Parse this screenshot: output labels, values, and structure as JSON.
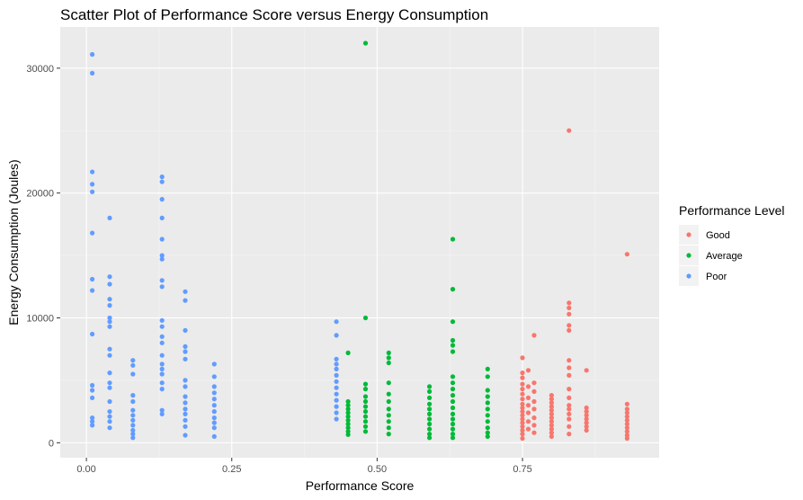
{
  "chart_data": {
    "type": "scatter",
    "title": "Scatter Plot of Performance Score versus Energy Consumption",
    "xlabel": "Performance Score",
    "ylabel": "Energy Consumption (Joules)",
    "xlim": [
      -0.045,
      0.985
    ],
    "ylim": [
      -1200,
      33300
    ],
    "x_ticks": [
      0.0,
      0.25,
      0.5,
      0.75
    ],
    "x_tick_labels": [
      "0.00",
      "0.25",
      "0.50",
      "0.75"
    ],
    "y_ticks": [
      0,
      10000,
      20000,
      30000
    ],
    "y_tick_labels": [
      "0",
      "10000",
      "20000",
      "30000"
    ],
    "grid": true,
    "panel_background": "#ebebeb",
    "legend": {
      "title": "Performance Level",
      "position": "right"
    },
    "series": [
      {
        "name": "Good",
        "color": "#f8766d",
        "points": [
          [
            0.75,
            6800
          ],
          [
            0.75,
            5600
          ],
          [
            0.75,
            5200
          ],
          [
            0.75,
            4700
          ],
          [
            0.75,
            4300
          ],
          [
            0.75,
            3900
          ],
          [
            0.75,
            3500
          ],
          [
            0.75,
            3100
          ],
          [
            0.75,
            2800
          ],
          [
            0.75,
            2500
          ],
          [
            0.75,
            2200
          ],
          [
            0.75,
            1900
          ],
          [
            0.75,
            1600
          ],
          [
            0.75,
            1300
          ],
          [
            0.75,
            1000
          ],
          [
            0.75,
            700
          ],
          [
            0.75,
            350
          ],
          [
            0.76,
            5800
          ],
          [
            0.76,
            4500
          ],
          [
            0.76,
            3600
          ],
          [
            0.76,
            3000
          ],
          [
            0.76,
            2400
          ],
          [
            0.76,
            1700
          ],
          [
            0.76,
            1100
          ],
          [
            0.77,
            8600
          ],
          [
            0.77,
            4800
          ],
          [
            0.77,
            4100
          ],
          [
            0.77,
            3300
          ],
          [
            0.77,
            2700
          ],
          [
            0.77,
            2000
          ],
          [
            0.77,
            1400
          ],
          [
            0.77,
            800
          ],
          [
            0.8,
            3800
          ],
          [
            0.8,
            3500
          ],
          [
            0.8,
            3200
          ],
          [
            0.8,
            2900
          ],
          [
            0.8,
            2600
          ],
          [
            0.8,
            2300
          ],
          [
            0.8,
            2000
          ],
          [
            0.8,
            1700
          ],
          [
            0.8,
            1400
          ],
          [
            0.8,
            1100
          ],
          [
            0.8,
            800
          ],
          [
            0.8,
            500
          ],
          [
            0.83,
            25000
          ],
          [
            0.83,
            11200
          ],
          [
            0.83,
            10800
          ],
          [
            0.83,
            10300
          ],
          [
            0.83,
            9400
          ],
          [
            0.83,
            9000
          ],
          [
            0.83,
            6600
          ],
          [
            0.83,
            6000
          ],
          [
            0.83,
            5400
          ],
          [
            0.83,
            4300
          ],
          [
            0.83,
            3600
          ],
          [
            0.83,
            3000
          ],
          [
            0.83,
            2700
          ],
          [
            0.83,
            2300
          ],
          [
            0.83,
            1900
          ],
          [
            0.83,
            1300
          ],
          [
            0.83,
            700
          ],
          [
            0.86,
            5800
          ],
          [
            0.86,
            2800
          ],
          [
            0.86,
            2500
          ],
          [
            0.86,
            2200
          ],
          [
            0.86,
            1900
          ],
          [
            0.86,
            1600
          ],
          [
            0.86,
            1300
          ],
          [
            0.86,
            1000
          ],
          [
            0.93,
            15100
          ],
          [
            0.93,
            3100
          ],
          [
            0.93,
            2700
          ],
          [
            0.93,
            2400
          ],
          [
            0.93,
            2100
          ],
          [
            0.93,
            1800
          ],
          [
            0.93,
            1500
          ],
          [
            0.93,
            1200
          ],
          [
            0.93,
            900
          ],
          [
            0.93,
            600
          ],
          [
            0.93,
            350
          ]
        ]
      },
      {
        "name": "Average",
        "color": "#00ba38",
        "points": [
          [
            0.45,
            7200
          ],
          [
            0.45,
            3300
          ],
          [
            0.45,
            3000
          ],
          [
            0.45,
            2700
          ],
          [
            0.45,
            2400
          ],
          [
            0.45,
            2100
          ],
          [
            0.45,
            1800
          ],
          [
            0.45,
            1500
          ],
          [
            0.45,
            1200
          ],
          [
            0.45,
            900
          ],
          [
            0.45,
            650
          ],
          [
            0.48,
            32000
          ],
          [
            0.48,
            10000
          ],
          [
            0.48,
            4700
          ],
          [
            0.48,
            4300
          ],
          [
            0.48,
            3700
          ],
          [
            0.48,
            3300
          ],
          [
            0.48,
            2900
          ],
          [
            0.48,
            2500
          ],
          [
            0.48,
            2100
          ],
          [
            0.48,
            1700
          ],
          [
            0.48,
            1300
          ],
          [
            0.48,
            900
          ],
          [
            0.52,
            7200
          ],
          [
            0.52,
            6800
          ],
          [
            0.52,
            6400
          ],
          [
            0.52,
            4800
          ],
          [
            0.52,
            3900
          ],
          [
            0.52,
            3300
          ],
          [
            0.52,
            2700
          ],
          [
            0.52,
            2200
          ],
          [
            0.52,
            1700
          ],
          [
            0.52,
            1200
          ],
          [
            0.52,
            700
          ],
          [
            0.59,
            4500
          ],
          [
            0.59,
            4100
          ],
          [
            0.59,
            3600
          ],
          [
            0.59,
            3100
          ],
          [
            0.59,
            2700
          ],
          [
            0.59,
            2300
          ],
          [
            0.59,
            1900
          ],
          [
            0.59,
            1500
          ],
          [
            0.59,
            1100
          ],
          [
            0.59,
            700
          ],
          [
            0.59,
            400
          ],
          [
            0.63,
            16300
          ],
          [
            0.63,
            12300
          ],
          [
            0.63,
            9700
          ],
          [
            0.63,
            8200
          ],
          [
            0.63,
            7800
          ],
          [
            0.63,
            7300
          ],
          [
            0.63,
            5300
          ],
          [
            0.63,
            4800
          ],
          [
            0.63,
            4300
          ],
          [
            0.63,
            3800
          ],
          [
            0.63,
            3300
          ],
          [
            0.63,
            2800
          ],
          [
            0.63,
            2300
          ],
          [
            0.63,
            1900
          ],
          [
            0.63,
            1500
          ],
          [
            0.63,
            1100
          ],
          [
            0.63,
            700
          ],
          [
            0.63,
            400
          ],
          [
            0.69,
            5900
          ],
          [
            0.69,
            5300
          ],
          [
            0.69,
            4200
          ],
          [
            0.69,
            3700
          ],
          [
            0.69,
            3200
          ],
          [
            0.69,
            2700
          ],
          [
            0.69,
            2200
          ],
          [
            0.69,
            1700
          ],
          [
            0.69,
            1200
          ],
          [
            0.69,
            800
          ],
          [
            0.69,
            500
          ]
        ]
      },
      {
        "name": "Poor",
        "color": "#619cff",
        "points": [
          [
            0.01,
            31100
          ],
          [
            0.01,
            29600
          ],
          [
            0.01,
            21700
          ],
          [
            0.01,
            20700
          ],
          [
            0.01,
            20100
          ],
          [
            0.01,
            16800
          ],
          [
            0.01,
            13100
          ],
          [
            0.01,
            12200
          ],
          [
            0.01,
            8700
          ],
          [
            0.01,
            4600
          ],
          [
            0.01,
            4200
          ],
          [
            0.01,
            3600
          ],
          [
            0.01,
            2000
          ],
          [
            0.01,
            1700
          ],
          [
            0.01,
            1400
          ],
          [
            0.04,
            18000
          ],
          [
            0.04,
            13300
          ],
          [
            0.04,
            12700
          ],
          [
            0.04,
            11500
          ],
          [
            0.04,
            11000
          ],
          [
            0.04,
            10000
          ],
          [
            0.04,
            9700
          ],
          [
            0.04,
            9300
          ],
          [
            0.04,
            7500
          ],
          [
            0.04,
            7000
          ],
          [
            0.04,
            5600
          ],
          [
            0.04,
            4800
          ],
          [
            0.04,
            4400
          ],
          [
            0.04,
            3300
          ],
          [
            0.04,
            2500
          ],
          [
            0.04,
            2100
          ],
          [
            0.04,
            1700
          ],
          [
            0.04,
            1200
          ],
          [
            0.08,
            6600
          ],
          [
            0.08,
            6200
          ],
          [
            0.08,
            5500
          ],
          [
            0.08,
            3800
          ],
          [
            0.08,
            3300
          ],
          [
            0.08,
            2600
          ],
          [
            0.08,
            2200
          ],
          [
            0.08,
            1800
          ],
          [
            0.08,
            1400
          ],
          [
            0.08,
            1000
          ],
          [
            0.08,
            700
          ],
          [
            0.08,
            400
          ],
          [
            0.13,
            21300
          ],
          [
            0.13,
            20900
          ],
          [
            0.13,
            19500
          ],
          [
            0.13,
            18000
          ],
          [
            0.13,
            16300
          ],
          [
            0.13,
            15000
          ],
          [
            0.13,
            14700
          ],
          [
            0.13,
            13000
          ],
          [
            0.13,
            12500
          ],
          [
            0.13,
            9800
          ],
          [
            0.13,
            9300
          ],
          [
            0.13,
            8500
          ],
          [
            0.13,
            8000
          ],
          [
            0.13,
            7000
          ],
          [
            0.13,
            6300
          ],
          [
            0.13,
            5900
          ],
          [
            0.13,
            5500
          ],
          [
            0.13,
            4800
          ],
          [
            0.13,
            4300
          ],
          [
            0.13,
            2600
          ],
          [
            0.13,
            2300
          ],
          [
            0.17,
            12100
          ],
          [
            0.17,
            11400
          ],
          [
            0.17,
            9000
          ],
          [
            0.17,
            7700
          ],
          [
            0.17,
            7300
          ],
          [
            0.17,
            6700
          ],
          [
            0.17,
            5000
          ],
          [
            0.17,
            4500
          ],
          [
            0.17,
            3700
          ],
          [
            0.17,
            3200
          ],
          [
            0.17,
            2700
          ],
          [
            0.17,
            2300
          ],
          [
            0.17,
            1800
          ],
          [
            0.17,
            1300
          ],
          [
            0.17,
            600
          ],
          [
            0.22,
            6300
          ],
          [
            0.22,
            5300
          ],
          [
            0.22,
            4500
          ],
          [
            0.22,
            4000
          ],
          [
            0.22,
            3500
          ],
          [
            0.22,
            3000
          ],
          [
            0.22,
            2500
          ],
          [
            0.22,
            2000
          ],
          [
            0.22,
            1600
          ],
          [
            0.22,
            1200
          ],
          [
            0.22,
            500
          ],
          [
            0.43,
            9700
          ],
          [
            0.43,
            8600
          ],
          [
            0.43,
            6700
          ],
          [
            0.43,
            6300
          ],
          [
            0.43,
            5900
          ],
          [
            0.43,
            5400
          ],
          [
            0.43,
            4900
          ],
          [
            0.43,
            4400
          ],
          [
            0.43,
            3900
          ],
          [
            0.43,
            3400
          ],
          [
            0.43,
            2900
          ],
          [
            0.43,
            2400
          ],
          [
            0.43,
            1900
          ]
        ]
      }
    ]
  }
}
